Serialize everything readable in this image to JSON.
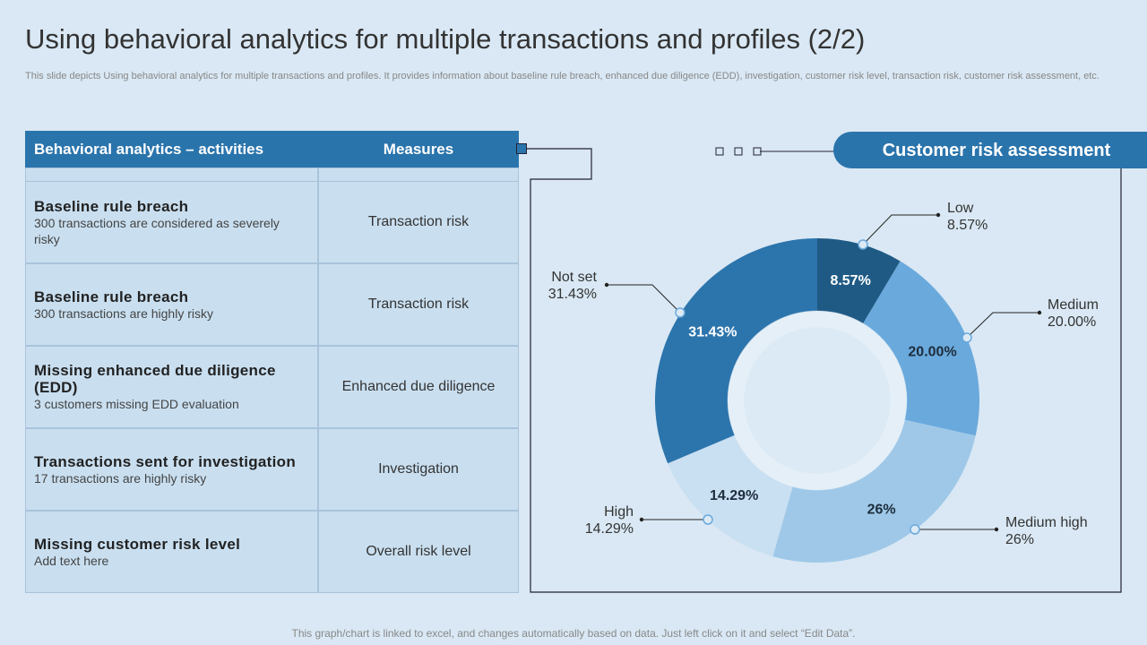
{
  "header": {
    "title": "Using behavioral analytics for multiple transactions and profiles (2/2)",
    "subtitle": "This slide depicts Using behavioral analytics for multiple transactions and profiles. It provides information about baseline rule breach, enhanced due diligence (EDD), investigation, customer risk level, transaction risk, customer risk assessment, etc."
  },
  "table": {
    "columns": [
      "Behavioral analytics  – activities",
      "Measures"
    ],
    "rows": [
      {
        "title": "Baseline rule breach",
        "description": "300 transactions are considered as severely risky",
        "measure": "Transaction risk"
      },
      {
        "title": "Baseline rule breach",
        "description": "300 transactions are highly risky",
        "measure": "Transaction risk"
      },
      {
        "title": "Missing  enhanced due diligence (EDD)",
        "description": "3 customers missing EDD evaluation",
        "measure": "Enhanced due diligence"
      },
      {
        "title": "Transactions sent for investigation",
        "description": "17 transactions are highly  risky",
        "measure": "Investigation"
      },
      {
        "title": "Missing  customer risk level",
        "description": "Add text here",
        "measure": "Overall risk level"
      }
    ]
  },
  "chart_data": {
    "type": "donut",
    "title": "Customer risk assessment",
    "categories": [
      "Low",
      "Medium",
      "Medium high",
      "High",
      "Not set"
    ],
    "values": [
      8.57,
      20.0,
      26,
      14.29,
      31.43
    ],
    "value_labels": [
      "8.57%",
      "20.00%",
      "26%",
      "14.29%",
      "31.43%"
    ],
    "colors": [
      "#1f5a85",
      "#6aa9dc",
      "#9fc8e8",
      "#c9dff2",
      "#2c74ac"
    ]
  },
  "footer": {
    "note": "This graph/chart is linked to excel,  and changes automatically based on data. Just left click on it and select “Edit Data”."
  }
}
